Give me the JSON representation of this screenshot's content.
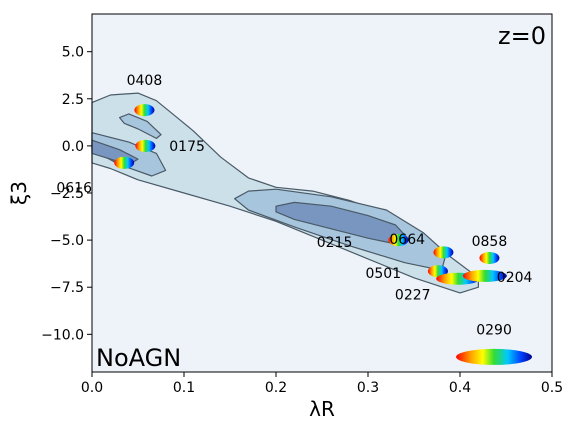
{
  "chart_data": {
    "type": "scatter",
    "title": "",
    "xlabel": "λR",
    "ylabel": "ξ3",
    "xlim": [
      0.0,
      0.5
    ],
    "ylim": [
      -12.0,
      7.0
    ],
    "xticks": [
      0.0,
      0.1,
      0.2,
      0.3,
      0.4,
      0.5
    ],
    "xtick_labels": [
      "0.0",
      "0.1",
      "0.2",
      "0.3",
      "0.4",
      "0.5"
    ],
    "yticks": [
      5.0,
      2.5,
      0.0,
      -2.5,
      -5.0,
      -7.5,
      -10.0
    ],
    "ytick_labels": [
      "5.0",
      "2.5",
      "0.0",
      "−2.5",
      "−5.0",
      "−7.5",
      "−10.0"
    ],
    "grid": false,
    "corner_labels": {
      "top_right": "z=0",
      "bottom_left": "NoAGN"
    },
    "contours": [
      {
        "level": "outer",
        "fill": "#cce0ea",
        "points": [
          [
            0.0,
            2.3
          ],
          [
            0.02,
            2.7
          ],
          [
            0.05,
            2.8
          ],
          [
            0.07,
            2.4
          ],
          [
            0.09,
            1.6
          ],
          [
            0.11,
            0.8
          ],
          [
            0.14,
            -0.6
          ],
          [
            0.17,
            -1.7
          ],
          [
            0.2,
            -2.2
          ],
          [
            0.24,
            -2.4
          ],
          [
            0.28,
            -2.9
          ],
          [
            0.32,
            -3.6
          ],
          [
            0.36,
            -4.8
          ],
          [
            0.39,
            -5.9
          ],
          [
            0.42,
            -7.0
          ],
          [
            0.42,
            -7.5
          ],
          [
            0.4,
            -7.8
          ],
          [
            0.35,
            -7.0
          ],
          [
            0.3,
            -6.0
          ],
          [
            0.25,
            -5.0
          ],
          [
            0.2,
            -4.0
          ],
          [
            0.15,
            -3.2
          ],
          [
            0.1,
            -2.5
          ],
          [
            0.05,
            -1.8
          ],
          [
            0.02,
            -1.2
          ],
          [
            0.0,
            -0.9
          ]
        ]
      },
      {
        "level": "middle",
        "fill": "#a7c5dd",
        "points": [
          [
            0.0,
            0.7
          ],
          [
            0.04,
            0.2
          ],
          [
            0.07,
            -0.4
          ],
          [
            0.08,
            -1.3
          ],
          [
            0.065,
            -1.6
          ],
          [
            0.03,
            -1.0
          ],
          [
            0.0,
            -0.2
          ]
        ]
      },
      {
        "level": "middle",
        "fill": "#a7c5dd",
        "points": [
          [
            0.155,
            -2.8
          ],
          [
            0.17,
            -2.4
          ],
          [
            0.2,
            -2.3
          ],
          [
            0.26,
            -2.7
          ],
          [
            0.32,
            -3.4
          ],
          [
            0.36,
            -4.6
          ],
          [
            0.385,
            -5.7
          ],
          [
            0.38,
            -6.6
          ],
          [
            0.34,
            -6.2
          ],
          [
            0.28,
            -5.3
          ],
          [
            0.22,
            -4.3
          ],
          [
            0.17,
            -3.4
          ]
        ]
      },
      {
        "level": "middle",
        "fill": "#a7c5dd",
        "points": [
          [
            0.03,
            1.5
          ],
          [
            0.04,
            1.7
          ],
          [
            0.06,
            1.3
          ],
          [
            0.075,
            0.6
          ],
          [
            0.07,
            0.4
          ],
          [
            0.05,
            0.9
          ],
          [
            0.035,
            1.2
          ]
        ]
      },
      {
        "level": "inner",
        "fill": "#7896c0",
        "points": [
          [
            0.0,
            0.3
          ],
          [
            0.03,
            -0.2
          ],
          [
            0.05,
            -0.7
          ],
          [
            0.04,
            -1.0
          ],
          [
            0.0,
            -0.4
          ]
        ]
      },
      {
        "level": "inner",
        "fill": "#7896c0",
        "points": [
          [
            0.2,
            -3.2
          ],
          [
            0.22,
            -3.0
          ],
          [
            0.26,
            -3.2
          ],
          [
            0.3,
            -3.7
          ],
          [
            0.33,
            -4.2
          ],
          [
            0.345,
            -5.0
          ],
          [
            0.33,
            -5.2
          ],
          [
            0.3,
            -4.9
          ],
          [
            0.26,
            -4.4
          ],
          [
            0.22,
            -3.9
          ],
          [
            0.2,
            -3.5
          ]
        ]
      }
    ],
    "points": [
      {
        "label": "0408",
        "x": 0.057,
        "y": 1.9
      },
      {
        "label": "0175",
        "x": 0.058,
        "y": 0.0
      },
      {
        "label": "0616",
        "x": 0.035,
        "y": -0.9
      },
      {
        "label": "0215",
        "x": 0.333,
        "y": -5.0
      },
      {
        "label": "0664",
        "x": 0.382,
        "y": -5.65
      },
      {
        "label": "0858",
        "x": 0.432,
        "y": -5.95
      },
      {
        "label": "0501",
        "x": 0.376,
        "y": -6.65
      },
      {
        "label": "0227",
        "x": 0.398,
        "y": -7.05
      },
      {
        "label": "0204",
        "x": 0.427,
        "y": -6.9
      },
      {
        "label": "0290",
        "x": 0.437,
        "y": -11.2
      }
    ]
  }
}
